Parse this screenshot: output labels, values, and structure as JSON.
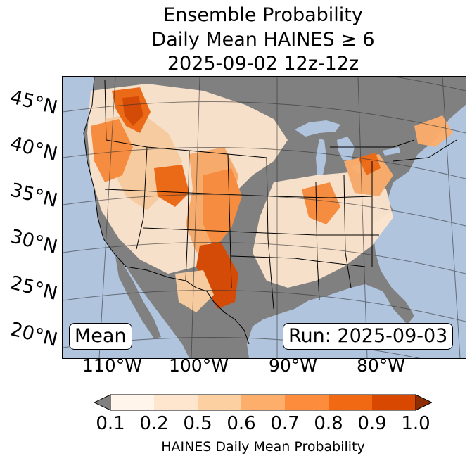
{
  "title": {
    "line1": "Ensemble Probability",
    "line2": "Daily Mean HAINES ≥ 6",
    "line3": "2025-09-02 12z-12z"
  },
  "map": {
    "latitude_labels": [
      "45°N",
      "40°N",
      "35°N",
      "30°N",
      "25°N",
      "20°N"
    ],
    "longitude_labels": [
      "110°W",
      "100°W",
      "90°W",
      "80°W"
    ],
    "stat_box": "Mean",
    "run_box": "Run: 2025-09-03",
    "ocean_color": "#b0c4de",
    "no_data_color": "#808080"
  },
  "colorbar": {
    "tick_labels": [
      "0.1",
      "0.2",
      "0.5",
      "0.6",
      "0.7",
      "0.8",
      "0.9",
      "1.0"
    ],
    "bin_colors": [
      "#fff5eb",
      "#fee6ce",
      "#fdd0a2",
      "#fdae6b",
      "#fd8d3c",
      "#f16913",
      "#d94801"
    ],
    "under_color": "#808080",
    "over_color": "#8c2d04",
    "label": "HAINES Daily Mean Probability"
  }
}
